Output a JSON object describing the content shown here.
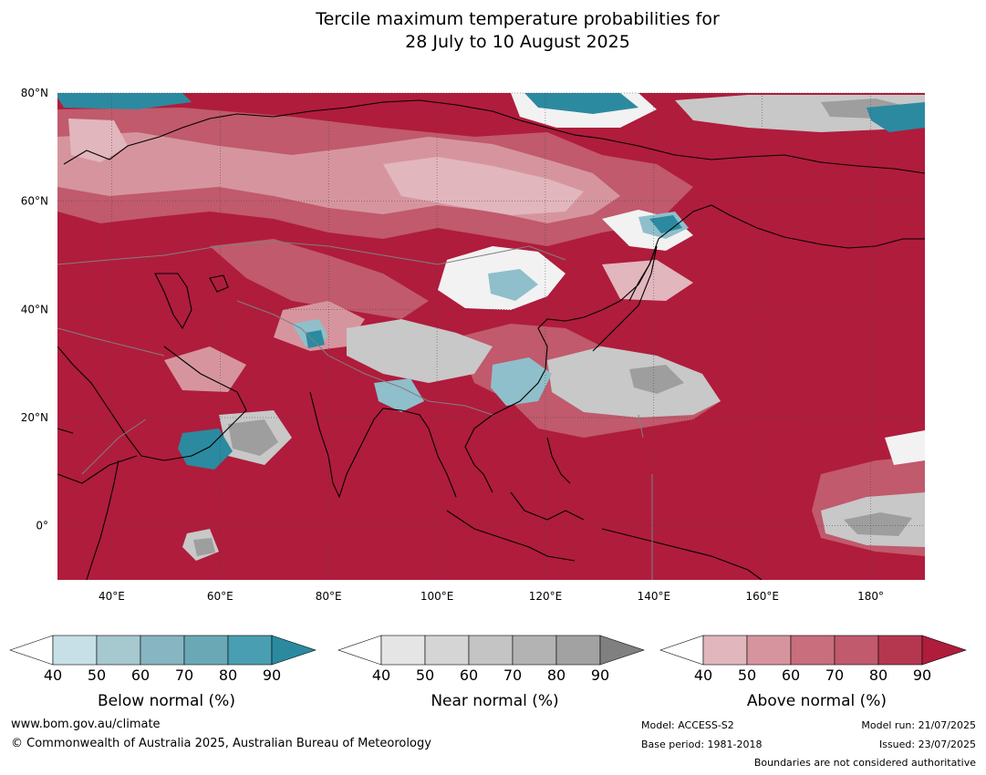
{
  "title": {
    "line1": "Tercile maximum temperature probabilities for",
    "line2": "28 July to 10 August 2025"
  },
  "map": {
    "lat_labels": [
      "80°N",
      "60°N",
      "40°N",
      "20°N",
      "0°"
    ],
    "lon_labels": [
      "40°E",
      "60°E",
      "80°E",
      "100°E",
      "120°E",
      "140°E",
      "160°E",
      "180°"
    ],
    "colors": {
      "above": [
        "#e2b6bd",
        "#d6959e",
        "#c86e7d",
        "#c05a6c",
        "#b5374f",
        "#b01c3c"
      ],
      "near": [
        "#ffffff",
        "#d8d8d8",
        "#c2c2c2",
        "#a8a8a8",
        "#8f8f8f"
      ],
      "below": [
        "#c7e0e7",
        "#8fbfcb",
        "#5aa3b3",
        "#2b8aa0"
      ],
      "coast": "#000000",
      "borders": "#808080"
    }
  },
  "colorbars": [
    {
      "id": "below",
      "label": "Below normal (%)",
      "ticks": [
        "40",
        "50",
        "60",
        "70",
        "80",
        "90"
      ],
      "colors": [
        "#ffffff",
        "#c7e0e7",
        "#a6c8cf",
        "#87b5c1",
        "#6aa8b6",
        "#499fb1",
        "#2b8aa0"
      ]
    },
    {
      "id": "near",
      "label": "Near normal (%)",
      "ticks": [
        "40",
        "50",
        "60",
        "70",
        "80",
        "90"
      ],
      "colors": [
        "#ffffff",
        "#e5e5e5",
        "#d5d5d5",
        "#c4c4c4",
        "#b3b3b3",
        "#a2a2a2",
        "#808080"
      ]
    },
    {
      "id": "above",
      "label": "Above normal (%)",
      "ticks": [
        "40",
        "50",
        "60",
        "70",
        "80",
        "90"
      ],
      "colors": [
        "#ffffff",
        "#e2b6bd",
        "#d6959e",
        "#c86e7d",
        "#c05a6c",
        "#b5374f",
        "#b01c3c"
      ]
    }
  ],
  "footer": {
    "site": "www.bom.gov.au/climate",
    "copyright": "© Commonwealth of Australia 2025, Australian Bureau of Meteorology",
    "model": "Model: ACCESS-S2",
    "base_period": "Base period: 1981-2018",
    "model_run": "Model run: 21/07/2025",
    "issued": "Issued: 23/07/2025",
    "boundaries": "Boundaries are not considered authoritative"
  }
}
